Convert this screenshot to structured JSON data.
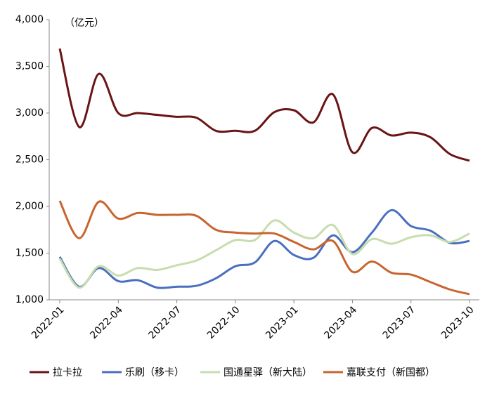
{
  "chart_data": {
    "type": "line",
    "annotation": "（亿元）",
    "categories": [
      "2022-01",
      null,
      null,
      "2022-04",
      null,
      null,
      "2022-07",
      null,
      null,
      "2022-10",
      null,
      null,
      "2023-01",
      null,
      null,
      "2023-04",
      null,
      null,
      "2023-07",
      null,
      null,
      "2023-10"
    ],
    "series": [
      {
        "name": "拉卡拉",
        "color": "#6b1414",
        "values": [
          3690,
          2850,
          3420,
          3000,
          3000,
          2980,
          2960,
          2950,
          2810,
          2810,
          2810,
          3010,
          3030,
          2900,
          3200,
          2580,
          2840,
          2760,
          2790,
          2740,
          2560,
          2490
        ]
      },
      {
        "name": "乐刷（移卡）",
        "color": "#4a6fbf",
        "values": [
          1460,
          1140,
          1340,
          1200,
          1210,
          1130,
          1140,
          1150,
          1230,
          1360,
          1400,
          1630,
          1480,
          1450,
          1690,
          1510,
          1720,
          1960,
          1790,
          1740,
          1610,
          1630
        ]
      },
      {
        "name": "国通星驿（新大陆）",
        "color": "#c7ddae",
        "values": [
          1440,
          1130,
          1360,
          1260,
          1340,
          1320,
          1370,
          1420,
          1530,
          1640,
          1640,
          1850,
          1720,
          1660,
          1800,
          1490,
          1650,
          1600,
          1670,
          1690,
          1620,
          1710
        ]
      },
      {
        "name": "嘉联支付（新国都）",
        "color": "#c8642e",
        "values": [
          2060,
          1660,
          2050,
          1870,
          1930,
          1910,
          1910,
          1900,
          1750,
          1720,
          1710,
          1710,
          1620,
          1540,
          1630,
          1300,
          1410,
          1290,
          1270,
          1190,
          1110,
          1060
        ]
      }
    ],
    "ylim": [
      1000,
      4000
    ],
    "yticks": [
      {
        "value": 1000,
        "label": "1,000"
      },
      {
        "value": 1500,
        "label": "1,500"
      },
      {
        "value": 2000,
        "label": "2,000"
      },
      {
        "value": 2500,
        "label": "2,500"
      },
      {
        "value": 3000,
        "label": "3,000"
      },
      {
        "value": 3500,
        "label": "3,500"
      },
      {
        "value": 4000,
        "label": "4,000"
      }
    ],
    "grid": false,
    "legend": "bottom"
  }
}
